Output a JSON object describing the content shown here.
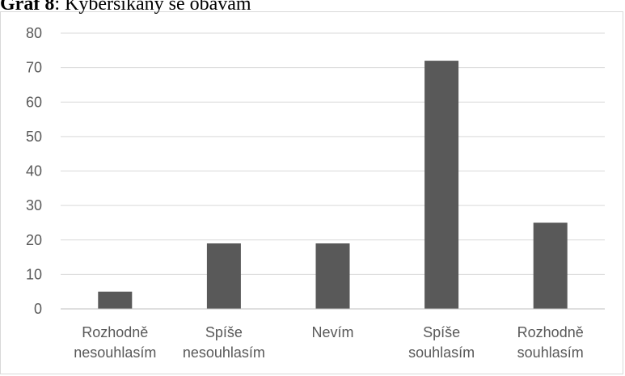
{
  "caption": {
    "prefix": "Graf 8",
    "text": ": Kyberšikany se obávám"
  },
  "chart_data": {
    "type": "bar",
    "categories": [
      [
        "Rozhodně",
        "nesouhlasím"
      ],
      [
        "Spíše",
        "nesouhlasím"
      ],
      [
        "Nevím"
      ],
      [
        "Spíše",
        "souhlasím"
      ],
      [
        "Rozhodně",
        "souhlasím"
      ]
    ],
    "values": [
      5,
      19,
      19,
      72,
      25
    ],
    "ylim": [
      0,
      80
    ],
    "yticks": [
      0,
      10,
      20,
      30,
      40,
      50,
      60,
      70,
      80
    ],
    "grid": true,
    "legend": false,
    "bar_color": "#595959",
    "grid_color": "#d9d9d9",
    "axis_color": "#bfbfbf"
  }
}
